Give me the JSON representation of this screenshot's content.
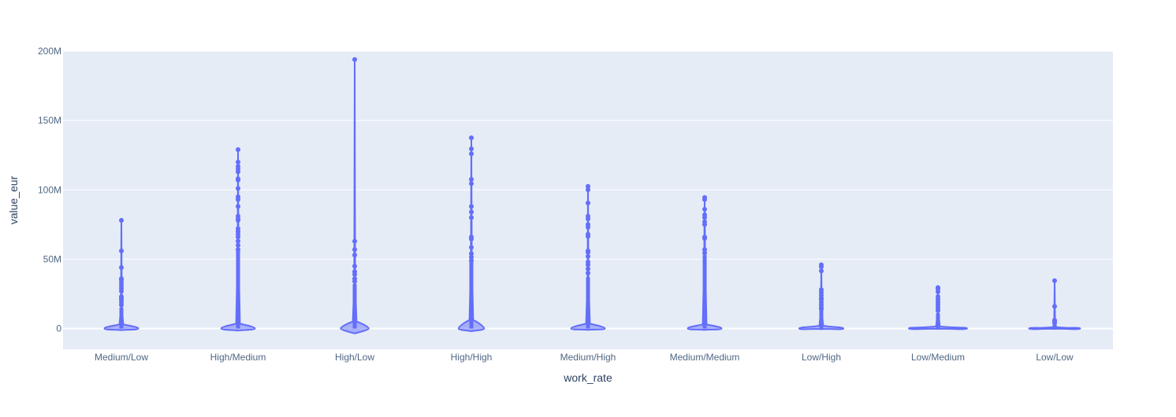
{
  "colors": {
    "plot_bg": "#e5ecf6",
    "grid": "#ffffff",
    "series": "#636efa",
    "text": "#2a3f5f",
    "tick_text": "#506784"
  },
  "chart_data": {
    "type": "violin",
    "xlabel": "work_rate",
    "ylabel": "value_eur",
    "ylim": [
      -15000000,
      200000000
    ],
    "y_ticks": [
      0,
      50000000,
      100000000,
      150000000,
      200000000
    ],
    "y_tick_labels": [
      "0",
      "50M",
      "100M",
      "150M",
      "200M"
    ],
    "grid": true,
    "categories": [
      "Medium/Low",
      "High/Medium",
      "High/Low",
      "High/High",
      "Medium/High",
      "Medium/Medium",
      "Low/High",
      "Low/Medium",
      "Low/Low"
    ],
    "series": [
      {
        "values_max": [
          78000000,
          129000000,
          194000000,
          137500000,
          102500000,
          94500000,
          46000000,
          29500000,
          34500000
        ],
        "outliers": [
          [
            78000000,
            56000000,
            44000000,
            36000000,
            35000000,
            33000000,
            31000000,
            29000000,
            27000000,
            23000000,
            22000000,
            21000000,
            19000000,
            17000000
          ],
          [
            129000000,
            120000000,
            117000000,
            115000000,
            113000000,
            108000000,
            107000000,
            101000000,
            95000000,
            93000000,
            88000000,
            81000000,
            79000000,
            78000000,
            72000000,
            70000000,
            68000000,
            66000000,
            63000000,
            60000000,
            57000000
          ],
          [
            194000000,
            63000000,
            57000000,
            53000000,
            45000000,
            41000000,
            39000000,
            36000000,
            34000000
          ],
          [
            137500000,
            129500000,
            126000000,
            107500000,
            104500000,
            88000000,
            84000000,
            80000000,
            66000000,
            64500000,
            58500000,
            54000000,
            51500000,
            49000000
          ],
          [
            102500000,
            100000000,
            90500000,
            81000000,
            79000000,
            75000000,
            73000000,
            68000000,
            66500000,
            56000000,
            55000000,
            52000000,
            48000000,
            46000000,
            43000000,
            40000000
          ],
          [
            94500000,
            93000000,
            86000000,
            82000000,
            80000000,
            77000000,
            75000000,
            66000000,
            65000000,
            57000000,
            54500000
          ],
          [
            46000000,
            44500000,
            41500000,
            28000000,
            26000000,
            24000000,
            22000000,
            21000000,
            19000000,
            17000000,
            15000000,
            14000000
          ],
          [
            29500000,
            28500000,
            26500000,
            23000000,
            21000000,
            19000000,
            17000000,
            15000000,
            13000000
          ],
          [
            34500000,
            16000000,
            6000000,
            5000000,
            4000000
          ]
        ],
        "dense_top": [
          15000000,
          57000000,
          32000000,
          48000000,
          37000000,
          53000000,
          13000000,
          11000000,
          3000000
        ],
        "body_halfwidth_units": [
          0.145,
          0.145,
          0.12,
          0.11,
          0.145,
          0.145,
          0.19,
          0.25,
          0.22
        ],
        "body_lower": [
          -1200000,
          -1500000,
          -3500000,
          -2000000,
          -1000000,
          -1000000,
          -500000,
          -300000,
          -300000
        ],
        "body_upper": [
          3000000,
          3500000,
          5000000,
          6000000,
          3500000,
          3000000,
          2000000,
          1500000,
          1000000
        ]
      }
    ]
  }
}
